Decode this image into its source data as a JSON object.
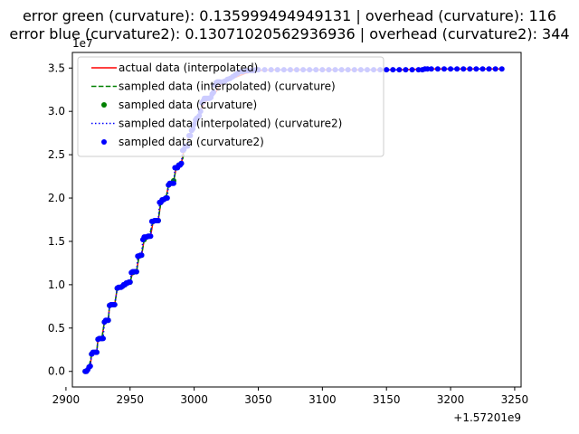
{
  "chart_data": {
    "type": "line",
    "title_lines": [
      "error green (curvature): 0.135999494949131 | overhead (curvature): 116",
      "error blue (curvature2): 0.13071020562936936 | overhead (curvature2): 344"
    ],
    "xlabel": "",
    "ylabel": "",
    "x_offset_label": "+1.57201e9",
    "y_multiplier_label": "1e7",
    "xlim": [
      2905,
      3255
    ],
    "ylim": [
      -0.18,
      3.68
    ],
    "x_ticks": [
      2900,
      2950,
      3000,
      3050,
      3100,
      3150,
      3200,
      3250
    ],
    "x_tick_labels": [
      "2900",
      "2950",
      "3000",
      "3050",
      "3100",
      "3150",
      "3200",
      "3250"
    ],
    "y_ticks": [
      0.0,
      0.5,
      1.0,
      1.5,
      2.0,
      2.5,
      3.0,
      3.5
    ],
    "y_tick_labels": [
      "0.0",
      "0.5",
      "1.0",
      "1.5",
      "2.0",
      "2.5",
      "3.0",
      "3.5"
    ],
    "grid": false,
    "legend_position": "top-left",
    "legend": [
      {
        "label": "actual data (interpolated)",
        "style": "solid-line",
        "color": "#ff0000"
      },
      {
        "label": "sampled data (interpolated) (curvature)",
        "style": "dashed-line",
        "color": "#008000"
      },
      {
        "label": "sampled data (curvature)",
        "style": "dot",
        "color": "#008000"
      },
      {
        "label": "sampled data (interpolated) (curvature2)",
        "style": "dotted-line",
        "color": "#0000ff"
      },
      {
        "label": "sampled data (curvature2)",
        "style": "dot",
        "color": "#0000ff"
      }
    ],
    "series": [
      {
        "name": "actual data (interpolated)",
        "color": "#ff0000",
        "x": [
          2915,
          2917,
          2918,
          2919,
          2920,
          2921,
          2924,
          2925,
          2926,
          2928,
          2930,
          2931,
          2933,
          2934,
          2935,
          2936,
          2938,
          2940,
          2942,
          2944,
          2946,
          2948,
          2950,
          2952,
          2953,
          2955,
          2957,
          2959,
          2961,
          2963,
          2965,
          2966,
          2968,
          2970,
          2972,
          2974,
          2976,
          2978,
          2980,
          2982,
          2984,
          2986,
          2988,
          2990,
          2992,
          2994,
          2996,
          2998,
          3000,
          3002,
          3005,
          3008,
          3012,
          3016,
          3020,
          3025,
          3030,
          3040,
          3050,
          3060,
          3080,
          3100,
          3120,
          3140,
          3160,
          3180,
          3200,
          3220,
          3240
        ],
        "y": [
          0.0,
          0.0,
          0.05,
          0.06,
          0.2,
          0.22,
          0.22,
          0.37,
          0.38,
          0.38,
          0.57,
          0.59,
          0.59,
          0.76,
          0.77,
          0.77,
          0.77,
          0.96,
          0.97,
          0.98,
          1.0,
          1.02,
          1.03,
          1.14,
          1.15,
          1.15,
          1.33,
          1.34,
          1.52,
          1.55,
          1.56,
          1.56,
          1.73,
          1.74,
          1.74,
          1.95,
          1.98,
          2.0,
          2.15,
          2.17,
          2.2,
          2.35,
          2.38,
          2.4,
          2.55,
          2.6,
          2.72,
          2.78,
          2.85,
          2.92,
          3.0,
          3.1,
          3.15,
          3.2,
          3.3,
          3.34,
          3.38,
          3.44,
          3.47,
          3.48,
          3.48,
          3.48,
          3.48,
          3.48,
          3.48,
          3.49,
          3.49,
          3.49,
          3.49
        ]
      },
      {
        "name": "sampled data (interpolated) (curvature)",
        "color": "#008000",
        "x": [
          2915,
          2918,
          2920,
          2924,
          2925,
          2928,
          2930,
          2933,
          2934,
          2938,
          2940,
          2944,
          2946,
          2950,
          2952,
          2955,
          2957,
          2959,
          2961,
          2965,
          2968,
          2972,
          2974,
          2978,
          2980,
          2984,
          2986,
          2988,
          2990,
          2994,
          2998,
          3002
        ],
        "y": [
          0.0,
          0.05,
          0.2,
          0.22,
          0.37,
          0.38,
          0.57,
          0.59,
          0.76,
          0.77,
          0.96,
          0.98,
          1.0,
          1.03,
          1.14,
          1.15,
          1.33,
          1.34,
          1.52,
          1.56,
          1.73,
          1.74,
          1.95,
          2.0,
          2.15,
          2.2,
          2.35,
          2.38,
          2.4,
          2.6,
          2.78,
          2.92
        ]
      },
      {
        "name": "sampled data (curvature)",
        "color": "#008000",
        "x": [
          2915,
          2918,
          2920,
          2924,
          2925,
          2928,
          2930,
          2933,
          2934,
          2938,
          2940,
          2944,
          2946,
          2950,
          2952,
          2955,
          2957,
          2959,
          2961,
          2965,
          2968,
          2972,
          2974,
          2978,
          2980,
          2984,
          2986,
          2988,
          2990,
          2994,
          2998,
          3002
        ],
        "y": [
          0.0,
          0.05,
          0.2,
          0.22,
          0.37,
          0.38,
          0.57,
          0.59,
          0.76,
          0.77,
          0.96,
          0.98,
          1.0,
          1.03,
          1.14,
          1.15,
          1.33,
          1.34,
          1.52,
          1.56,
          1.73,
          1.74,
          1.95,
          2.0,
          2.15,
          2.2,
          2.35,
          2.38,
          2.4,
          2.6,
          2.78,
          2.92
        ]
      },
      {
        "name": "sampled data (interpolated) (curvature2)",
        "color": "#0000ff",
        "x": [
          2915,
          2916,
          2917,
          2918,
          2919,
          2920,
          2921,
          2922,
          2923,
          2924,
          2925,
          2926,
          2927,
          2928,
          2929,
          2930,
          2931,
          2932,
          2933,
          2934,
          2935,
          2936,
          2937,
          2938,
          2940,
          2941,
          2942,
          2943,
          2944,
          2945,
          2946,
          2947,
          2948,
          2949,
          2950,
          2951,
          2952,
          2953,
          2954,
          2955,
          2956,
          2957,
          2958,
          2959,
          2960,
          2961,
          2962,
          2963,
          2964,
          2965,
          2966,
          2967,
          2968,
          2969,
          2970,
          2971,
          2972,
          2973,
          2974,
          2975,
          2976,
          2977,
          2978,
          2979,
          2980,
          2981,
          2982,
          2983,
          2984,
          2985,
          2986,
          2987,
          2988,
          2989,
          2990,
          2991,
          2992,
          2993,
          2994,
          2995,
          2996,
          2997,
          2998,
          2999,
          3000,
          3001,
          3002,
          3003,
          3004,
          3005,
          3006,
          3007,
          3008,
          3009,
          3010,
          3011,
          3012,
          3013,
          3014,
          3015,
          3016,
          3017,
          3018,
          3019,
          3020,
          3022,
          3024,
          3026,
          3028,
          3030,
          3032,
          3034,
          3036,
          3038,
          3040,
          3042,
          3044,
          3046,
          3048,
          3050,
          3055,
          3060,
          3065,
          3070,
          3075,
          3080,
          3085,
          3090,
          3095,
          3100,
          3105,
          3110,
          3115,
          3120,
          3125,
          3130,
          3135,
          3140,
          3145,
          3150,
          3155,
          3160,
          3165,
          3170,
          3175,
          3178,
          3180,
          3182,
          3185,
          3190,
          3195,
          3200,
          3205,
          3210,
          3215,
          3220,
          3225,
          3230,
          3235,
          3240
        ],
        "y": [
          0.0,
          0.0,
          0.02,
          0.05,
          0.06,
          0.2,
          0.22,
          0.22,
          0.22,
          0.22,
          0.37,
          0.38,
          0.38,
          0.38,
          0.38,
          0.57,
          0.59,
          0.59,
          0.59,
          0.76,
          0.77,
          0.77,
          0.77,
          0.77,
          0.96,
          0.97,
          0.97,
          0.97,
          0.98,
          1.0,
          1.0,
          1.02,
          1.02,
          1.03,
          1.03,
          1.14,
          1.15,
          1.15,
          1.15,
          1.15,
          1.33,
          1.33,
          1.34,
          1.34,
          1.52,
          1.55,
          1.55,
          1.55,
          1.56,
          1.56,
          1.56,
          1.73,
          1.73,
          1.74,
          1.74,
          1.74,
          1.74,
          1.95,
          1.95,
          1.98,
          1.98,
          1.99,
          2.0,
          2.0,
          2.15,
          2.17,
          2.17,
          2.17,
          2.17,
          2.35,
          2.35,
          2.35,
          2.38,
          2.38,
          2.4,
          2.55,
          2.56,
          2.6,
          2.6,
          2.6,
          2.72,
          2.72,
          2.78,
          2.8,
          2.85,
          2.9,
          2.92,
          2.93,
          2.95,
          3.0,
          3.1,
          3.12,
          3.15,
          3.15,
          3.15,
          3.15,
          3.15,
          3.16,
          3.2,
          3.22,
          3.3,
          3.33,
          3.34,
          3.34,
          3.34,
          3.34,
          3.35,
          3.37,
          3.38,
          3.4,
          3.42,
          3.44,
          3.46,
          3.46,
          3.47,
          3.47,
          3.47,
          3.47,
          3.48,
          3.48,
          3.48,
          3.48,
          3.48,
          3.48,
          3.48,
          3.48,
          3.48,
          3.48,
          3.48,
          3.48,
          3.48,
          3.48,
          3.48,
          3.48,
          3.48,
          3.48,
          3.48,
          3.48,
          3.48,
          3.48,
          3.48,
          3.48,
          3.48,
          3.48,
          3.48,
          3.48,
          3.49,
          3.49,
          3.49,
          3.49,
          3.49,
          3.49,
          3.49,
          3.49,
          3.49,
          3.49,
          3.49,
          3.49,
          3.49,
          3.49
        ]
      },
      {
        "name": "sampled data (curvature2)",
        "color": "#0000ff",
        "x": [
          2915,
          2916,
          2917,
          2918,
          2919,
          2920,
          2921,
          2922,
          2923,
          2924,
          2925,
          2926,
          2927,
          2928,
          2929,
          2930,
          2931,
          2932,
          2933,
          2934,
          2935,
          2936,
          2937,
          2938,
          2940,
          2941,
          2942,
          2943,
          2944,
          2945,
          2946,
          2947,
          2948,
          2949,
          2950,
          2951,
          2952,
          2953,
          2954,
          2955,
          2956,
          2957,
          2958,
          2959,
          2960,
          2961,
          2962,
          2963,
          2964,
          2965,
          2966,
          2967,
          2968,
          2969,
          2970,
          2971,
          2972,
          2973,
          2974,
          2975,
          2976,
          2977,
          2978,
          2979,
          2980,
          2981,
          2982,
          2983,
          2984,
          2985,
          2986,
          2987,
          2988,
          2989,
          2990,
          2991,
          2992,
          2993,
          2994,
          2995,
          2996,
          2997,
          2998,
          2999,
          3000,
          3001,
          3002,
          3003,
          3004,
          3005,
          3006,
          3007,
          3008,
          3009,
          3010,
          3011,
          3012,
          3013,
          3014,
          3015,
          3016,
          3017,
          3018,
          3019,
          3020,
          3022,
          3024,
          3026,
          3028,
          3030,
          3032,
          3034,
          3036,
          3038,
          3040,
          3042,
          3044,
          3046,
          3048,
          3050,
          3055,
          3060,
          3065,
          3070,
          3075,
          3080,
          3085,
          3090,
          3095,
          3100,
          3105,
          3110,
          3115,
          3120,
          3125,
          3130,
          3135,
          3140,
          3145,
          3150,
          3155,
          3160,
          3165,
          3170,
          3175,
          3178,
          3180,
          3182,
          3185,
          3190,
          3195,
          3200,
          3205,
          3210,
          3215,
          3220,
          3225,
          3230,
          3235,
          3240
        ],
        "y": [
          0.0,
          0.0,
          0.02,
          0.05,
          0.06,
          0.2,
          0.22,
          0.22,
          0.22,
          0.22,
          0.37,
          0.38,
          0.38,
          0.38,
          0.38,
          0.57,
          0.59,
          0.59,
          0.59,
          0.76,
          0.77,
          0.77,
          0.77,
          0.77,
          0.96,
          0.97,
          0.97,
          0.97,
          0.98,
          1.0,
          1.0,
          1.02,
          1.02,
          1.03,
          1.03,
          1.14,
          1.15,
          1.15,
          1.15,
          1.15,
          1.33,
          1.33,
          1.34,
          1.34,
          1.52,
          1.55,
          1.55,
          1.55,
          1.56,
          1.56,
          1.56,
          1.73,
          1.73,
          1.74,
          1.74,
          1.74,
          1.74,
          1.95,
          1.95,
          1.98,
          1.98,
          1.99,
          2.0,
          2.0,
          2.15,
          2.17,
          2.17,
          2.17,
          2.17,
          2.35,
          2.35,
          2.35,
          2.38,
          2.38,
          2.4,
          2.55,
          2.56,
          2.6,
          2.6,
          2.6,
          2.72,
          2.72,
          2.78,
          2.8,
          2.85,
          2.9,
          2.92,
          2.93,
          2.95,
          3.0,
          3.1,
          3.12,
          3.15,
          3.15,
          3.15,
          3.15,
          3.15,
          3.16,
          3.2,
          3.22,
          3.3,
          3.33,
          3.34,
          3.34,
          3.34,
          3.34,
          3.35,
          3.37,
          3.38,
          3.4,
          3.42,
          3.44,
          3.46,
          3.46,
          3.47,
          3.47,
          3.47,
          3.47,
          3.48,
          3.48,
          3.48,
          3.48,
          3.48,
          3.48,
          3.48,
          3.48,
          3.48,
          3.48,
          3.48,
          3.48,
          3.48,
          3.48,
          3.48,
          3.48,
          3.48,
          3.48,
          3.48,
          3.48,
          3.48,
          3.48,
          3.48,
          3.48,
          3.48,
          3.48,
          3.48,
          3.48,
          3.49,
          3.49,
          3.49,
          3.49,
          3.49,
          3.49,
          3.49,
          3.49,
          3.49,
          3.49,
          3.49,
          3.49,
          3.49,
          3.49
        ]
      }
    ]
  }
}
